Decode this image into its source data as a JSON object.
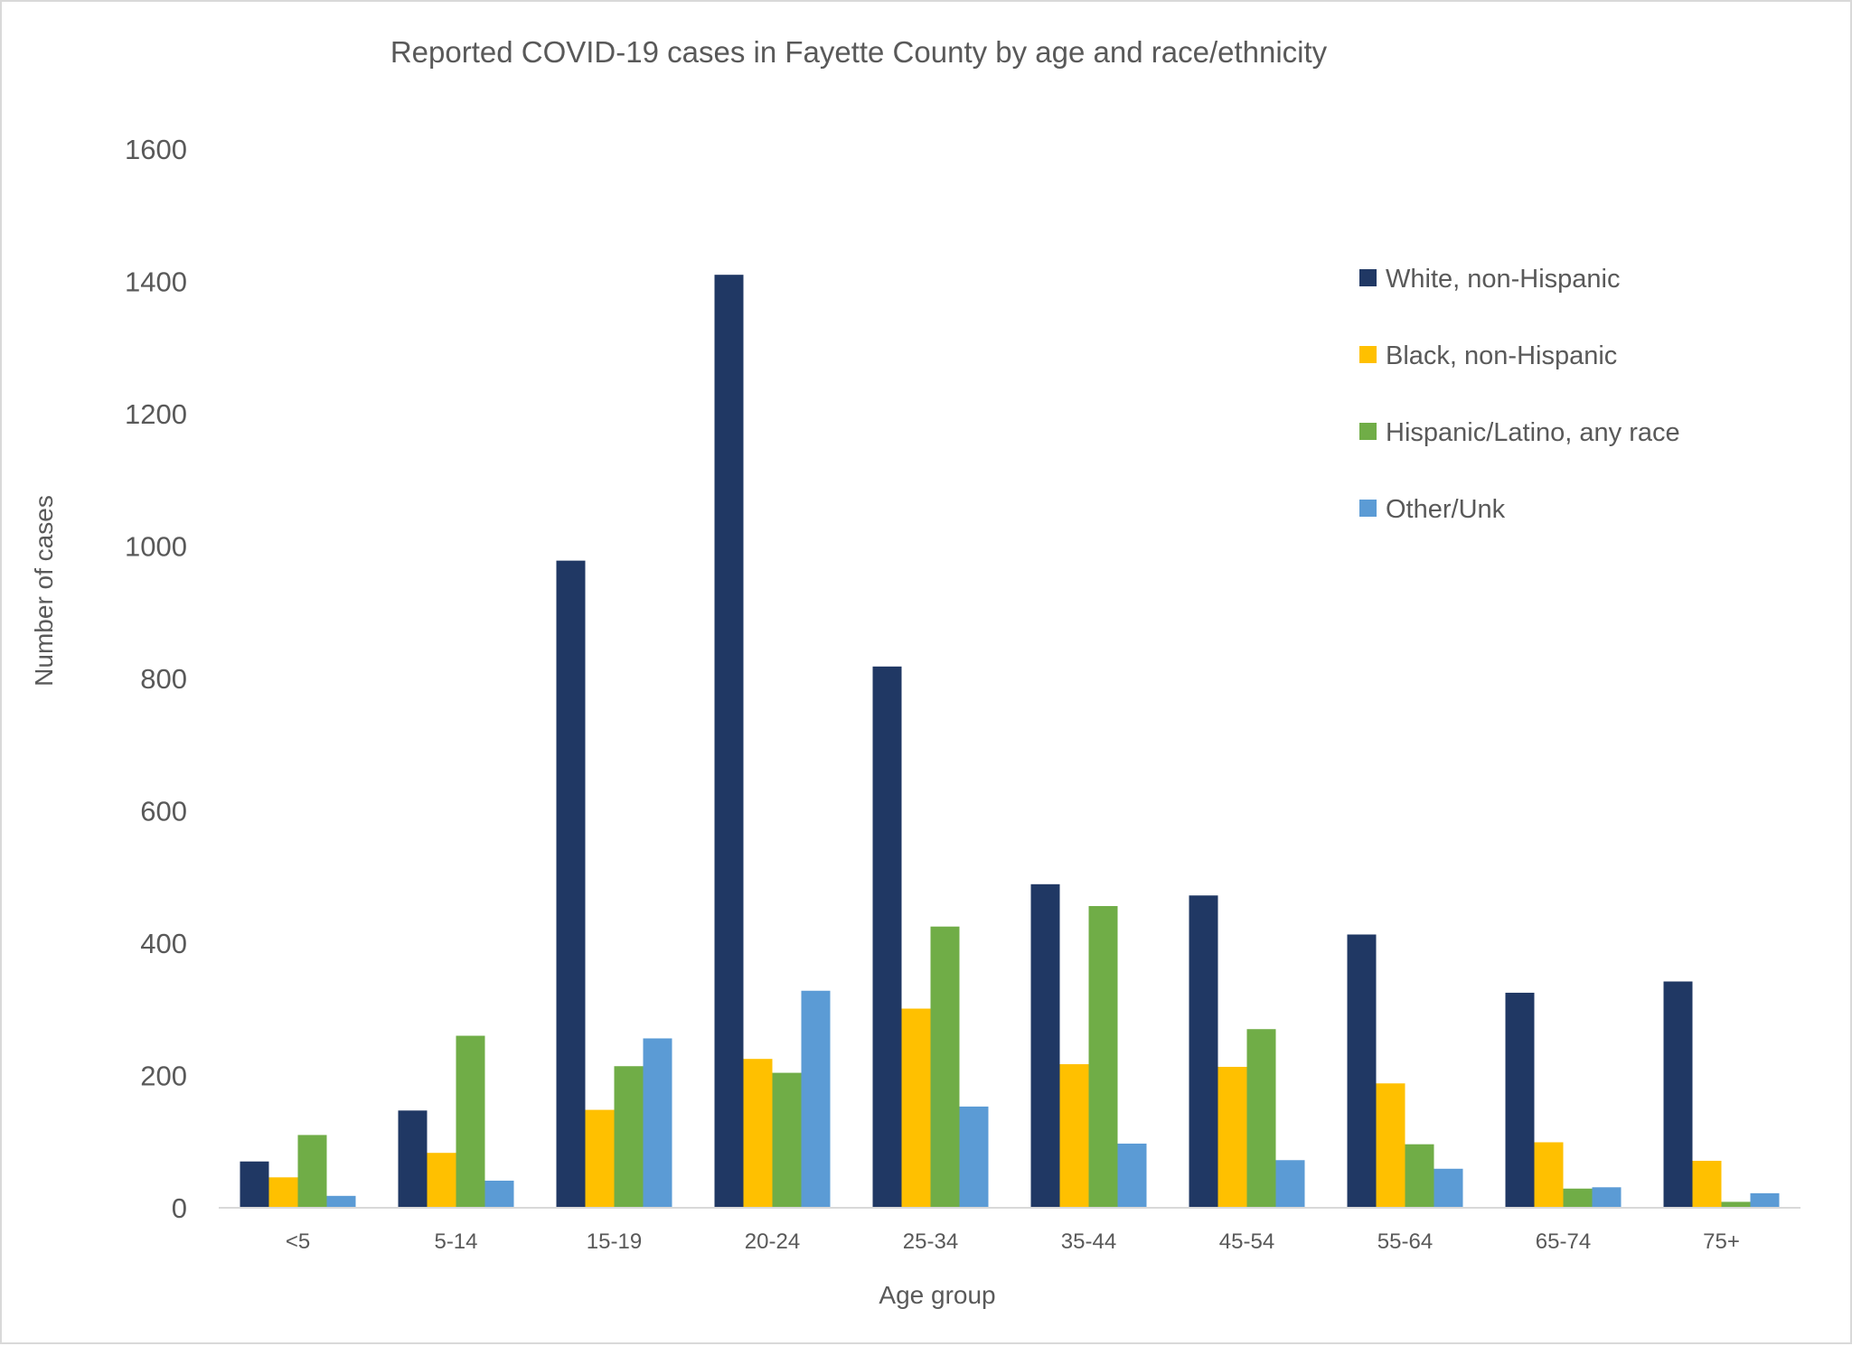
{
  "chart_data": {
    "type": "bar",
    "title": "Reported COVID-19 cases in Fayette County by age and race/ethnicity",
    "xlabel": "Age group",
    "ylabel": "Number of cases",
    "ylim": [
      0,
      1600
    ],
    "yticks": [
      "0",
      "200",
      "400",
      "600",
      "800",
      "1000",
      "1200",
      "1400",
      "1600"
    ],
    "grid": false,
    "legend_position": "top-right",
    "categories": [
      "<5",
      "5-14",
      "15-19",
      "20-24",
      "25-34",
      "35-44",
      "45-54",
      "55-64",
      "65-74",
      "75+"
    ],
    "series": [
      {
        "name": "White, non-Hispanic",
        "color": "#203864",
        "values": [
          70,
          147,
          978,
          1410,
          818,
          489,
          472,
          413,
          325,
          342
        ]
      },
      {
        "name": "Black, non-Hispanic",
        "color": "#ffc000",
        "values": [
          46,
          83,
          148,
          225,
          301,
          217,
          213,
          188,
          99,
          71
        ]
      },
      {
        "name": "Hispanic/Latino, any race",
        "color": "#70ad47",
        "values": [
          110,
          260,
          214,
          204,
          425,
          456,
          270,
          96,
          29,
          9
        ]
      },
      {
        "name": "Other/Unk",
        "color": "#5b9bd5",
        "values": [
          18,
          41,
          256,
          328,
          153,
          97,
          72,
          59,
          31,
          22
        ]
      }
    ]
  }
}
